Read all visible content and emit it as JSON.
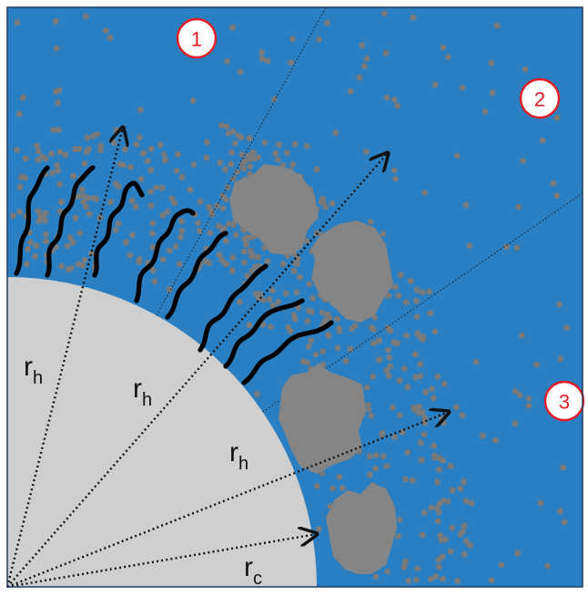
{
  "diagram": {
    "colors": {
      "medium": "#2a7fc2",
      "core": "#cfcfcf",
      "particle": "#7a7a7a",
      "aggregate": "#858585",
      "chain": "#000000",
      "region_stroke": "#e31b23",
      "arrow": "#111111",
      "frame": "#1f3f66"
    },
    "regions": [
      {
        "id": "region-1",
        "label": "1"
      },
      {
        "id": "region-2",
        "label": "2"
      },
      {
        "id": "region-3",
        "label": "3"
      }
    ],
    "radii": [
      {
        "id": "rh-1",
        "main": "r",
        "sub": "h"
      },
      {
        "id": "rh-2",
        "main": "r",
        "sub": "h"
      },
      {
        "id": "rh-3",
        "main": "r",
        "sub": "h"
      },
      {
        "id": "rc",
        "main": "r",
        "sub": "c"
      }
    ]
  }
}
